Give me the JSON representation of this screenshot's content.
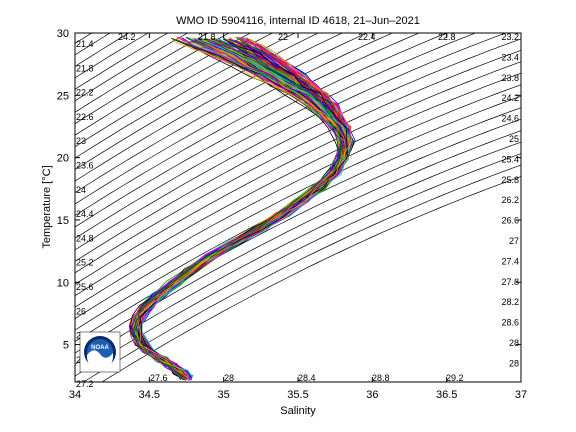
{
  "chart_data": {
    "type": "line",
    "title": "WMO ID 5904116, internal ID 4618, 21–Jun–2021",
    "xlabel": "Salinity",
    "ylabel": "Temperature [°C]",
    "xlim": [
      34,
      37
    ],
    "ylim": [
      2,
      30
    ],
    "xticks": [
      "34",
      "34.5",
      "35",
      "35.5",
      "36",
      "36.5",
      "37"
    ],
    "yticks": [
      "5",
      "10",
      "15",
      "20",
      "25",
      "30"
    ],
    "grid": false,
    "legend": "none",
    "profile_count": 120,
    "mean_profile": {
      "salinity": [
        34.75,
        34.71,
        34.65,
        34.58,
        34.5,
        34.45,
        34.42,
        34.41,
        34.43,
        34.48,
        34.56,
        34.66,
        34.78,
        34.92,
        35.08,
        35.24,
        35.39,
        35.52,
        35.64,
        35.74,
        35.8,
        35.82,
        35.78,
        35.72,
        35.66,
        35.58,
        35.48,
        35.38,
        35.26,
        35.14,
        35.02,
        34.92
      ],
      "temperature": [
        2.3,
        2.8,
        3.3,
        3.8,
        4.4,
        5.1,
        5.8,
        6.5,
        7.2,
        8.0,
        8.9,
        9.9,
        11.0,
        12.1,
        13.2,
        14.3,
        15.4,
        16.5,
        17.6,
        18.8,
        20.0,
        21.3,
        22.4,
        23.3,
        24.2,
        25.0,
        25.8,
        26.6,
        27.4,
        28.2,
        28.9,
        29.5
      ]
    },
    "isopycnals": {
      "left_labels": [
        "21.4",
        "21.8",
        "22.2",
        "22.6",
        "23",
        "23.6",
        "24",
        "24.4",
        "24.8",
        "25.2",
        "25.6",
        "26",
        "26.4",
        "26.8",
        "27.2"
      ],
      "right_labels": [
        "23.2",
        "23.4",
        "23.8",
        "24.2",
        "24.6",
        "25",
        "25.4",
        "25.8",
        "26.2",
        "26.6",
        "27",
        "27.4",
        "27.8",
        "28.2",
        "28.6",
        "28",
        "28"
      ],
      "top_labels": [
        "24.2",
        "21.8",
        "22",
        "22.4",
        "22.8"
      ],
      "bottom_labels": [
        "27.6",
        "28",
        "28.4",
        "28.8",
        "29.2"
      ]
    },
    "colors": [
      "#ff0000",
      "#0000ff",
      "#00aa00",
      "#ff00ff",
      "#00cccc",
      "#000000",
      "#ddaa00",
      "#8800cc",
      "#ff8800",
      "#006600"
    ]
  },
  "logo": {
    "text": "NOAA",
    "colors": {
      "ring": "#0a2a6b",
      "sky": "#1a5fb4",
      "wave": "#ffffff"
    }
  }
}
